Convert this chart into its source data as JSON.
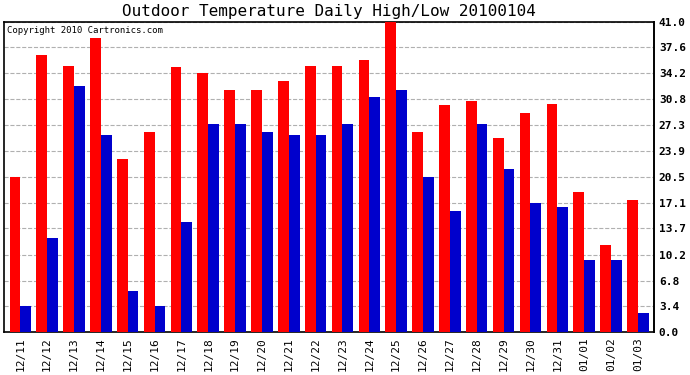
{
  "title": "Outdoor Temperature Daily High/Low 20100104",
  "copyright": "Copyright 2010 Cartronics.com",
  "dates": [
    "12/11",
    "12/12",
    "12/13",
    "12/14",
    "12/15",
    "12/16",
    "12/17",
    "12/18",
    "12/19",
    "12/20",
    "12/21",
    "12/22",
    "12/23",
    "12/24",
    "12/25",
    "12/26",
    "12/27",
    "12/28",
    "12/29",
    "12/30",
    "12/31",
    "01/01",
    "01/02",
    "01/03"
  ],
  "highs": [
    20.5,
    36.6,
    35.2,
    38.9,
    22.9,
    26.5,
    35.0,
    34.2,
    32.0,
    32.0,
    33.2,
    35.2,
    35.2,
    36.0,
    41.0,
    26.5,
    30.0,
    30.5,
    25.6,
    29.0,
    30.2,
    18.5,
    11.5,
    17.5
  ],
  "lows": [
    3.4,
    12.5,
    32.5,
    26.0,
    5.5,
    3.4,
    14.5,
    27.5,
    27.5,
    26.5,
    26.0,
    26.0,
    27.5,
    31.0,
    32.0,
    20.5,
    16.0,
    27.5,
    21.5,
    17.0,
    16.5,
    9.5,
    9.5,
    2.5
  ],
  "ylim": [
    0,
    41.0
  ],
  "yticks": [
    0.0,
    3.4,
    6.8,
    10.2,
    13.7,
    17.1,
    20.5,
    23.9,
    27.3,
    30.8,
    34.2,
    37.6,
    41.0
  ],
  "high_color": "#ff0000",
  "low_color": "#0000cc",
  "bg_color": "#ffffff",
  "plot_bg_color": "#ffffff",
  "grid_color": "#b0b0b0",
  "title_fontsize": 11.5,
  "tick_fontsize": 8,
  "bar_width": 0.4
}
